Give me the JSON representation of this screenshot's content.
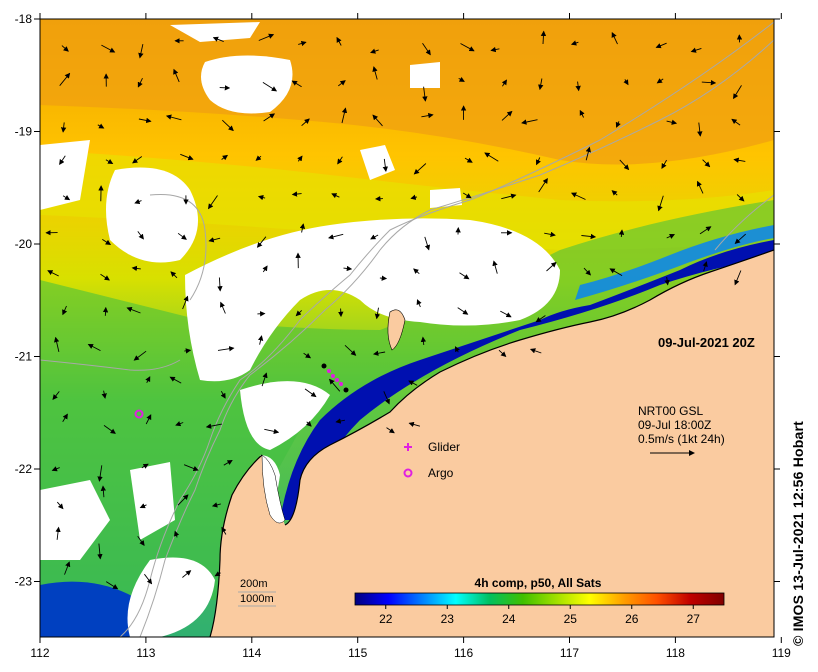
{
  "map": {
    "x_ticks": [
      "112",
      "113",
      "114",
      "115",
      "116",
      "117",
      "118",
      "119"
    ],
    "y_ticks": [
      "-18",
      "-19",
      "-20",
      "-21",
      "-22",
      "-23"
    ],
    "timestamp": "09-Jul-2021 20Z",
    "current_info": {
      "line1": "NRT00 GSL",
      "line2": "09-Jul 18:00Z",
      "line3": "0.5m/s (1kt 24h)"
    },
    "legend": {
      "glider": "Glider",
      "argo": "Argo"
    },
    "depth_labels": {
      "shallow": "200m",
      "deep": "1000m"
    },
    "colorbar": {
      "title": "4h comp, p50, All Sats",
      "ticks": [
        "22",
        "23",
        "24",
        "25",
        "26",
        "27"
      ],
      "min": 21.5,
      "max": 27.5,
      "colors": [
        "#00007f",
        "#0000ff",
        "#0080ff",
        "#00ffff",
        "#00c060",
        "#40c000",
        "#a0e000",
        "#ffff00",
        "#ffa000",
        "#ff5000",
        "#c00000",
        "#800000"
      ]
    },
    "credit": "IMOS 13-Jul-2021 12:56 Hobart",
    "colors": {
      "land": "#facba0",
      "glider": "#e020e0",
      "argo": "#e020e0",
      "cloud": "#ffffff"
    }
  }
}
